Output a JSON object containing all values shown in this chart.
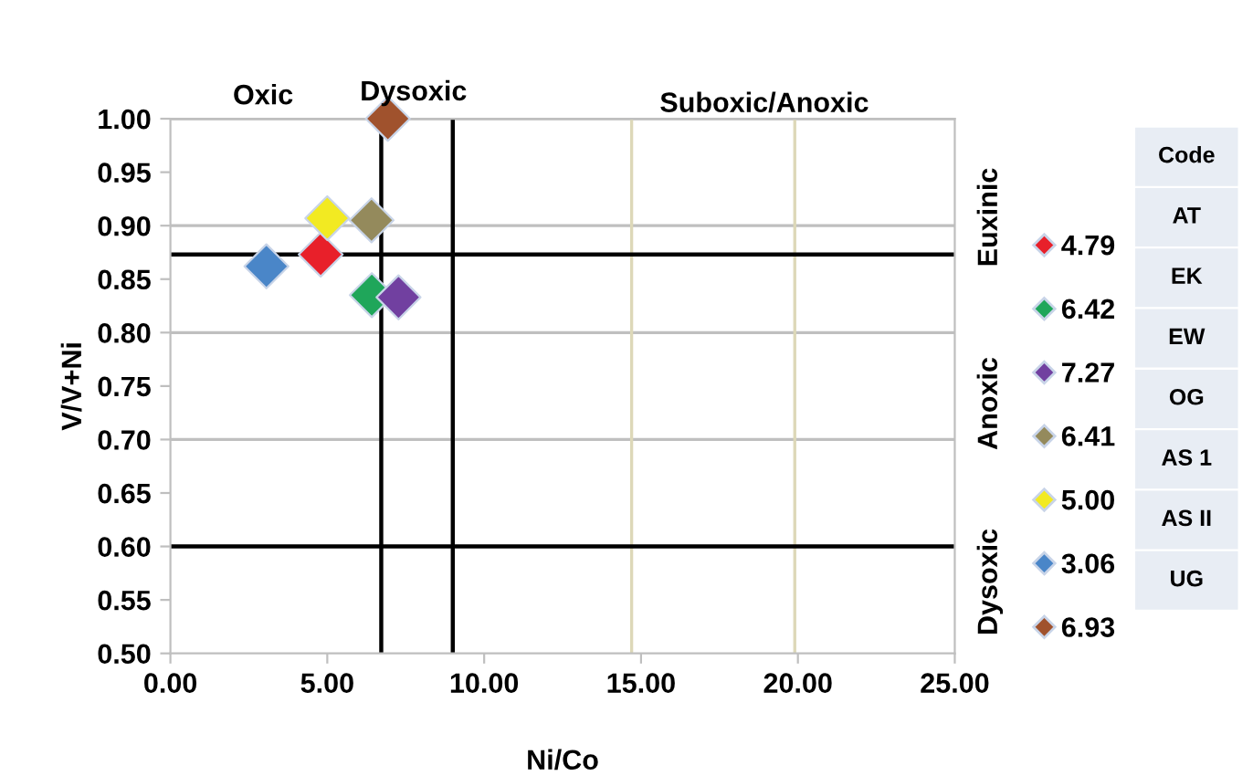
{
  "chart_data": {
    "type": "scatter",
    "xlabel": "Ni/Co",
    "ylabel": "V/V+Ni",
    "series": [
      {
        "name": "4.79",
        "color": "#e8202a",
        "x": [
          4.79
        ],
        "values": [
          0.873
        ]
      },
      {
        "name": "6.42",
        "color": "#1fa65a",
        "x": [
          6.42
        ],
        "values": [
          0.835
        ]
      },
      {
        "name": "7.27",
        "color": "#7140a0",
        "x": [
          7.27
        ],
        "values": [
          0.833
        ]
      },
      {
        "name": "6.41",
        "color": "#948a5c",
        "x": [
          6.41
        ],
        "values": [
          0.905
        ]
      },
      {
        "name": "5.00",
        "color": "#f2ea22",
        "x": [
          5.0
        ],
        "values": [
          0.907
        ]
      },
      {
        "name": "3.06",
        "color": "#4a86c8",
        "x": [
          3.06
        ],
        "values": [
          0.862
        ]
      },
      {
        "name": "6.93",
        "color": "#a0522d",
        "x": [
          6.93
        ],
        "values": [
          1.0
        ]
      }
    ],
    "marker": "diamond",
    "legend": "right",
    "xlim": [
      0,
      25
    ],
    "xticks": [
      {
        "value": 0,
        "label": "0.00"
      },
      {
        "value": 5,
        "label": "5.00"
      },
      {
        "value": 10,
        "label": "10.00"
      },
      {
        "value": 15,
        "label": "15.00"
      },
      {
        "value": 20,
        "label": "20.00"
      },
      {
        "value": 25,
        "label": "25.00"
      }
    ],
    "ylim": [
      0.5,
      1.0
    ],
    "yticks": [
      {
        "value": 0.5,
        "label": "0.50"
      },
      {
        "value": 0.55,
        "label": "0.55"
      },
      {
        "value": 0.6,
        "label": "0.60"
      },
      {
        "value": 0.65,
        "label": "0.65"
      },
      {
        "value": 0.7,
        "label": "0.70"
      },
      {
        "value": 0.75,
        "label": "0.75"
      },
      {
        "value": 0.8,
        "label": "0.80"
      },
      {
        "value": 0.85,
        "label": "0.85"
      },
      {
        "value": 0.9,
        "label": "0.90"
      },
      {
        "value": 0.95,
        "label": "0.95"
      },
      {
        "value": 1.0,
        "label": "1.00"
      }
    ],
    "ref_lines": [
      {
        "axis": "y",
        "value": 0.7,
        "color": "#bfbfbf"
      },
      {
        "axis": "y",
        "value": 0.8,
        "color": "#bfbfbf"
      },
      {
        "axis": "y",
        "value": 0.9,
        "color": "#bfbfbf"
      },
      {
        "axis": "y",
        "value": 1.0,
        "color": "#bfbfbf"
      },
      {
        "axis": "x",
        "value": 14.7,
        "color": "#ddd8b8"
      },
      {
        "axis": "x",
        "value": 19.9,
        "color": "#ddd8b8"
      },
      {
        "axis": "x",
        "value": 6.72,
        "color": "#000000"
      },
      {
        "axis": "x",
        "value": 9.0,
        "color": "#000000"
      },
      {
        "axis": "y",
        "value": 0.873,
        "color": "#000000"
      },
      {
        "axis": "y",
        "value": 0.6,
        "color": "#000000"
      }
    ],
    "annotations": [
      "Oxic",
      "Dysoxic",
      "Suboxic/Anoxic",
      "Euxinic",
      "Anoxic",
      "Dysoxic",
      "Code",
      "AT",
      "EK",
      "EW",
      "OG",
      "AS 1",
      "AS II",
      "UG"
    ]
  }
}
